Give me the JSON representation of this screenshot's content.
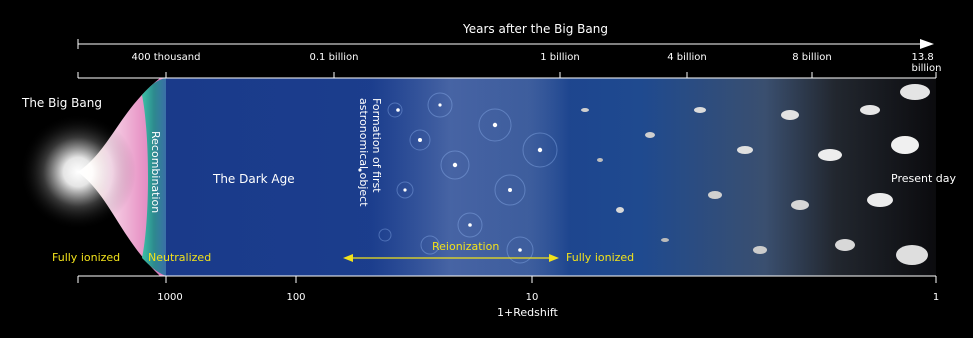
{
  "top_axis": {
    "title": "Years after the Big Bang",
    "ticks": [
      "400 thousand",
      "0.1 billion",
      "1 billion",
      "4 billion",
      "8 billion",
      "13.8 billion"
    ]
  },
  "bottom_axis": {
    "title": "1+Redshift",
    "ticks": [
      "1000",
      "100",
      "10",
      "1"
    ]
  },
  "labels": {
    "big_bang": "The Big Bang",
    "recombination": "Recombination",
    "dark_age": "The Dark Age",
    "first_objects": "Formation of first astronomical object",
    "present_day": "Present day",
    "fully_ionized_left": "Fully ionized",
    "neutralized": "Neutralized",
    "reionization": "Reionization",
    "fully_ionized_right": "Fully ionized"
  },
  "colors": {
    "background": "#000000",
    "dark_age_blue": "#1c3d8a",
    "label_yellow": "#f2e21b",
    "axis_line": "#ffffff"
  }
}
